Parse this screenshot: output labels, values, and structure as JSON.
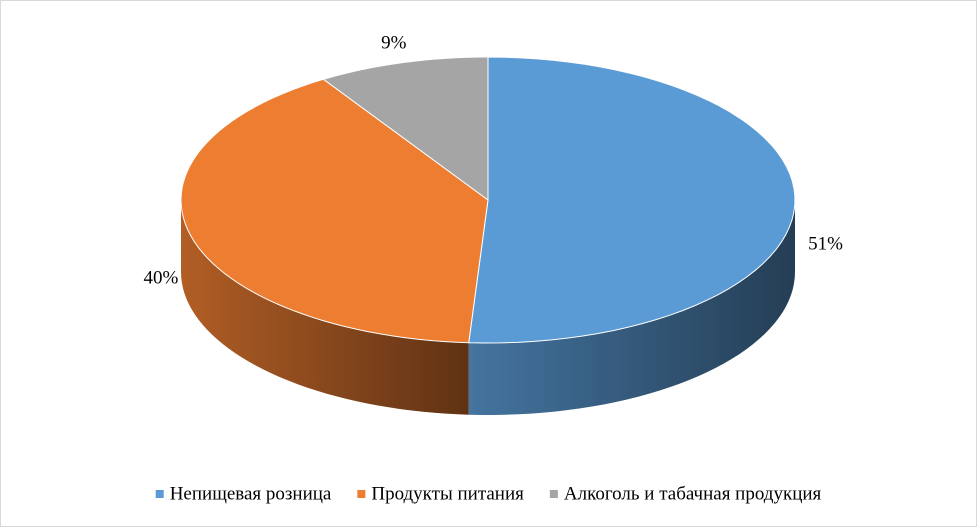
{
  "chart_data": {
    "type": "pie3d",
    "categories": [
      "Непищевая розница",
      "Продукты питания",
      "Алкоголь и табачная продукция"
    ],
    "values": [
      51,
      40,
      9
    ],
    "value_labels": [
      "51%",
      "40%",
      "9%"
    ],
    "colors": [
      "#5b9bd5",
      "#ed7d31",
      "#a5a5a5"
    ],
    "legend": "bottom"
  }
}
